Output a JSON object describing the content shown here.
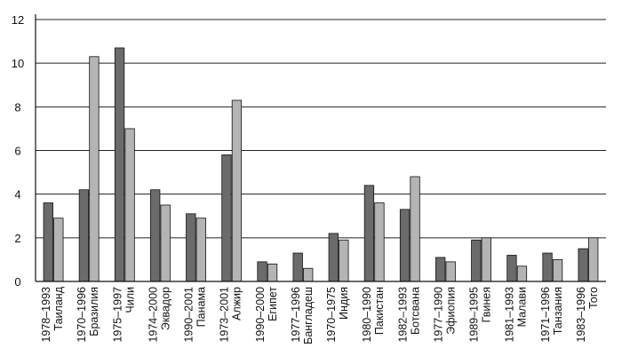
{
  "chart_data": {
    "type": "bar",
    "categories": [
      [
        "1978–1993",
        "Таиланд"
      ],
      [
        "1970–1996",
        "Бразилия"
      ],
      [
        "1975–1997",
        "Чили"
      ],
      [
        "1974–2000",
        "Эквадор"
      ],
      [
        "1990–2001",
        "Панама"
      ],
      [
        "1973–2001",
        "Алжир"
      ],
      [
        "1990–2000",
        "Египет"
      ],
      [
        "1977–1996",
        "Бангладеш"
      ],
      [
        "1970–1975",
        "Индия"
      ],
      [
        "1980–1990",
        "Пакистан"
      ],
      [
        "1982–1993",
        "Ботсвана"
      ],
      [
        "1977–1990",
        "Эфиопия"
      ],
      [
        "1989–1995",
        "Гвинея"
      ],
      [
        "1981–1993",
        "Малави"
      ],
      [
        "1971–1996",
        "Танзания"
      ],
      [
        "1983–1996",
        "Того"
      ]
    ],
    "series": [
      {
        "color": "#6b6b6b",
        "values": [
          3.6,
          4.2,
          10.7,
          4.2,
          3.1,
          5.8,
          0.9,
          1.3,
          2.2,
          4.4,
          3.3,
          1.1,
          1.9,
          1.2,
          1.3,
          1.5
        ]
      },
      {
        "color": "#b4b4b4",
        "values": [
          2.9,
          10.3,
          7.0,
          3.5,
          2.9,
          8.3,
          0.8,
          0.6,
          1.9,
          3.6,
          4.8,
          0.9,
          2.0,
          0.7,
          1.0,
          2.0
        ]
      }
    ],
    "yticks": [
      "0",
      "2",
      "4",
      "6",
      "8",
      "10",
      "12"
    ],
    "ylim": [
      0,
      12
    ],
    "grid": true
  }
}
